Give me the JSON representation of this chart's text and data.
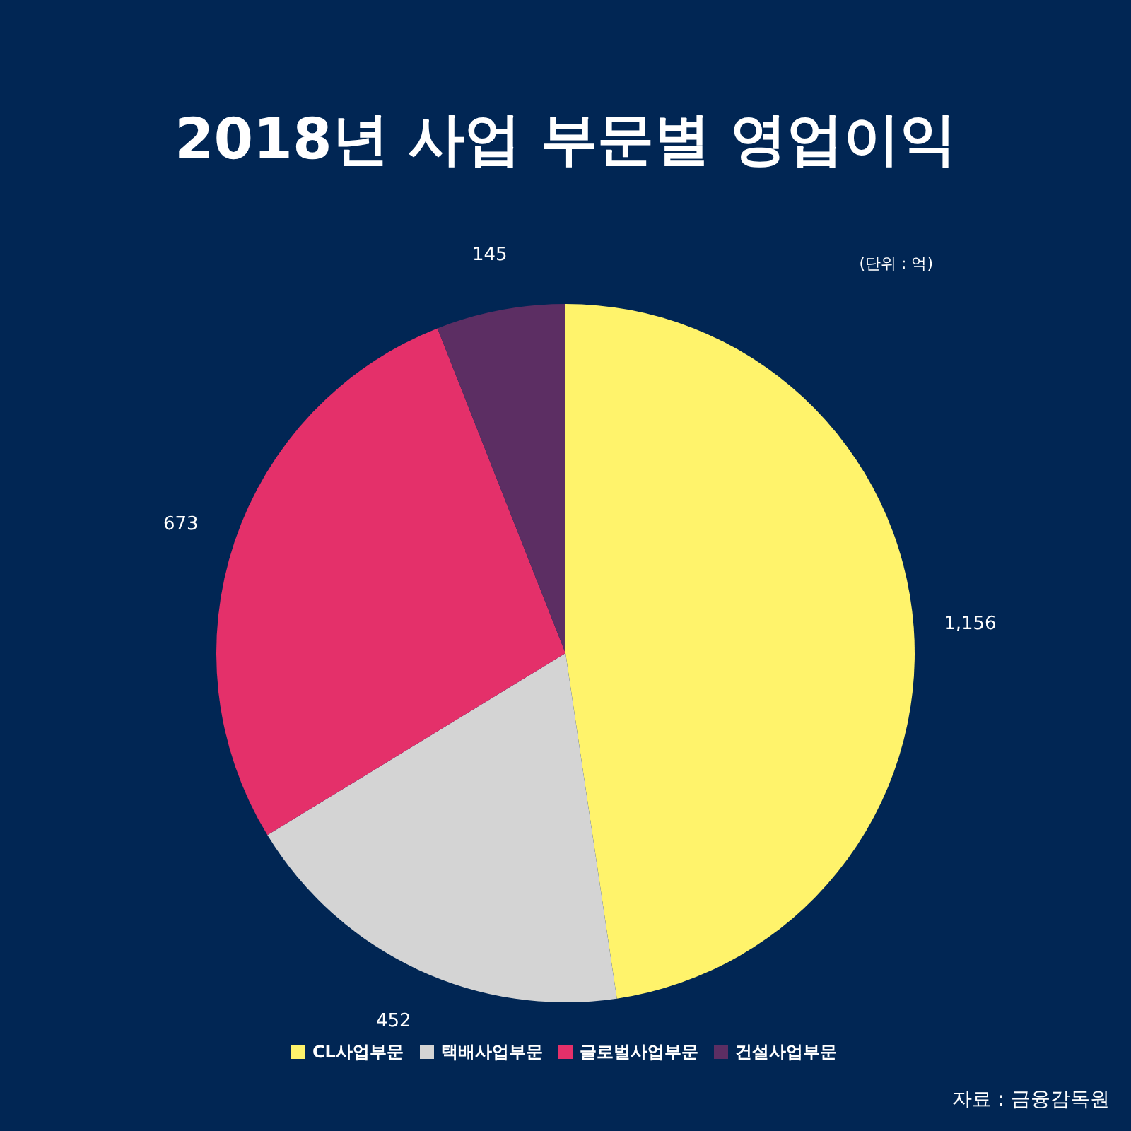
{
  "chart_data": {
    "type": "pie",
    "title": "2018년 사업 부문별 영업이익",
    "categories": [
      "CL사업부문",
      "택배사업부문",
      "글로벌사업부문",
      "건설사업부문"
    ],
    "values": [
      1156,
      452,
      673,
      145
    ],
    "value_labels": [
      "1,156",
      "452",
      "673",
      "145"
    ],
    "colors": [
      "#fff36b",
      "#d4d4d4",
      "#e4306a",
      "#5c2e63"
    ],
    "legend": "bottom",
    "annotations": [
      "(단위 : 억)",
      "자료 : 금융감독원"
    ]
  }
}
